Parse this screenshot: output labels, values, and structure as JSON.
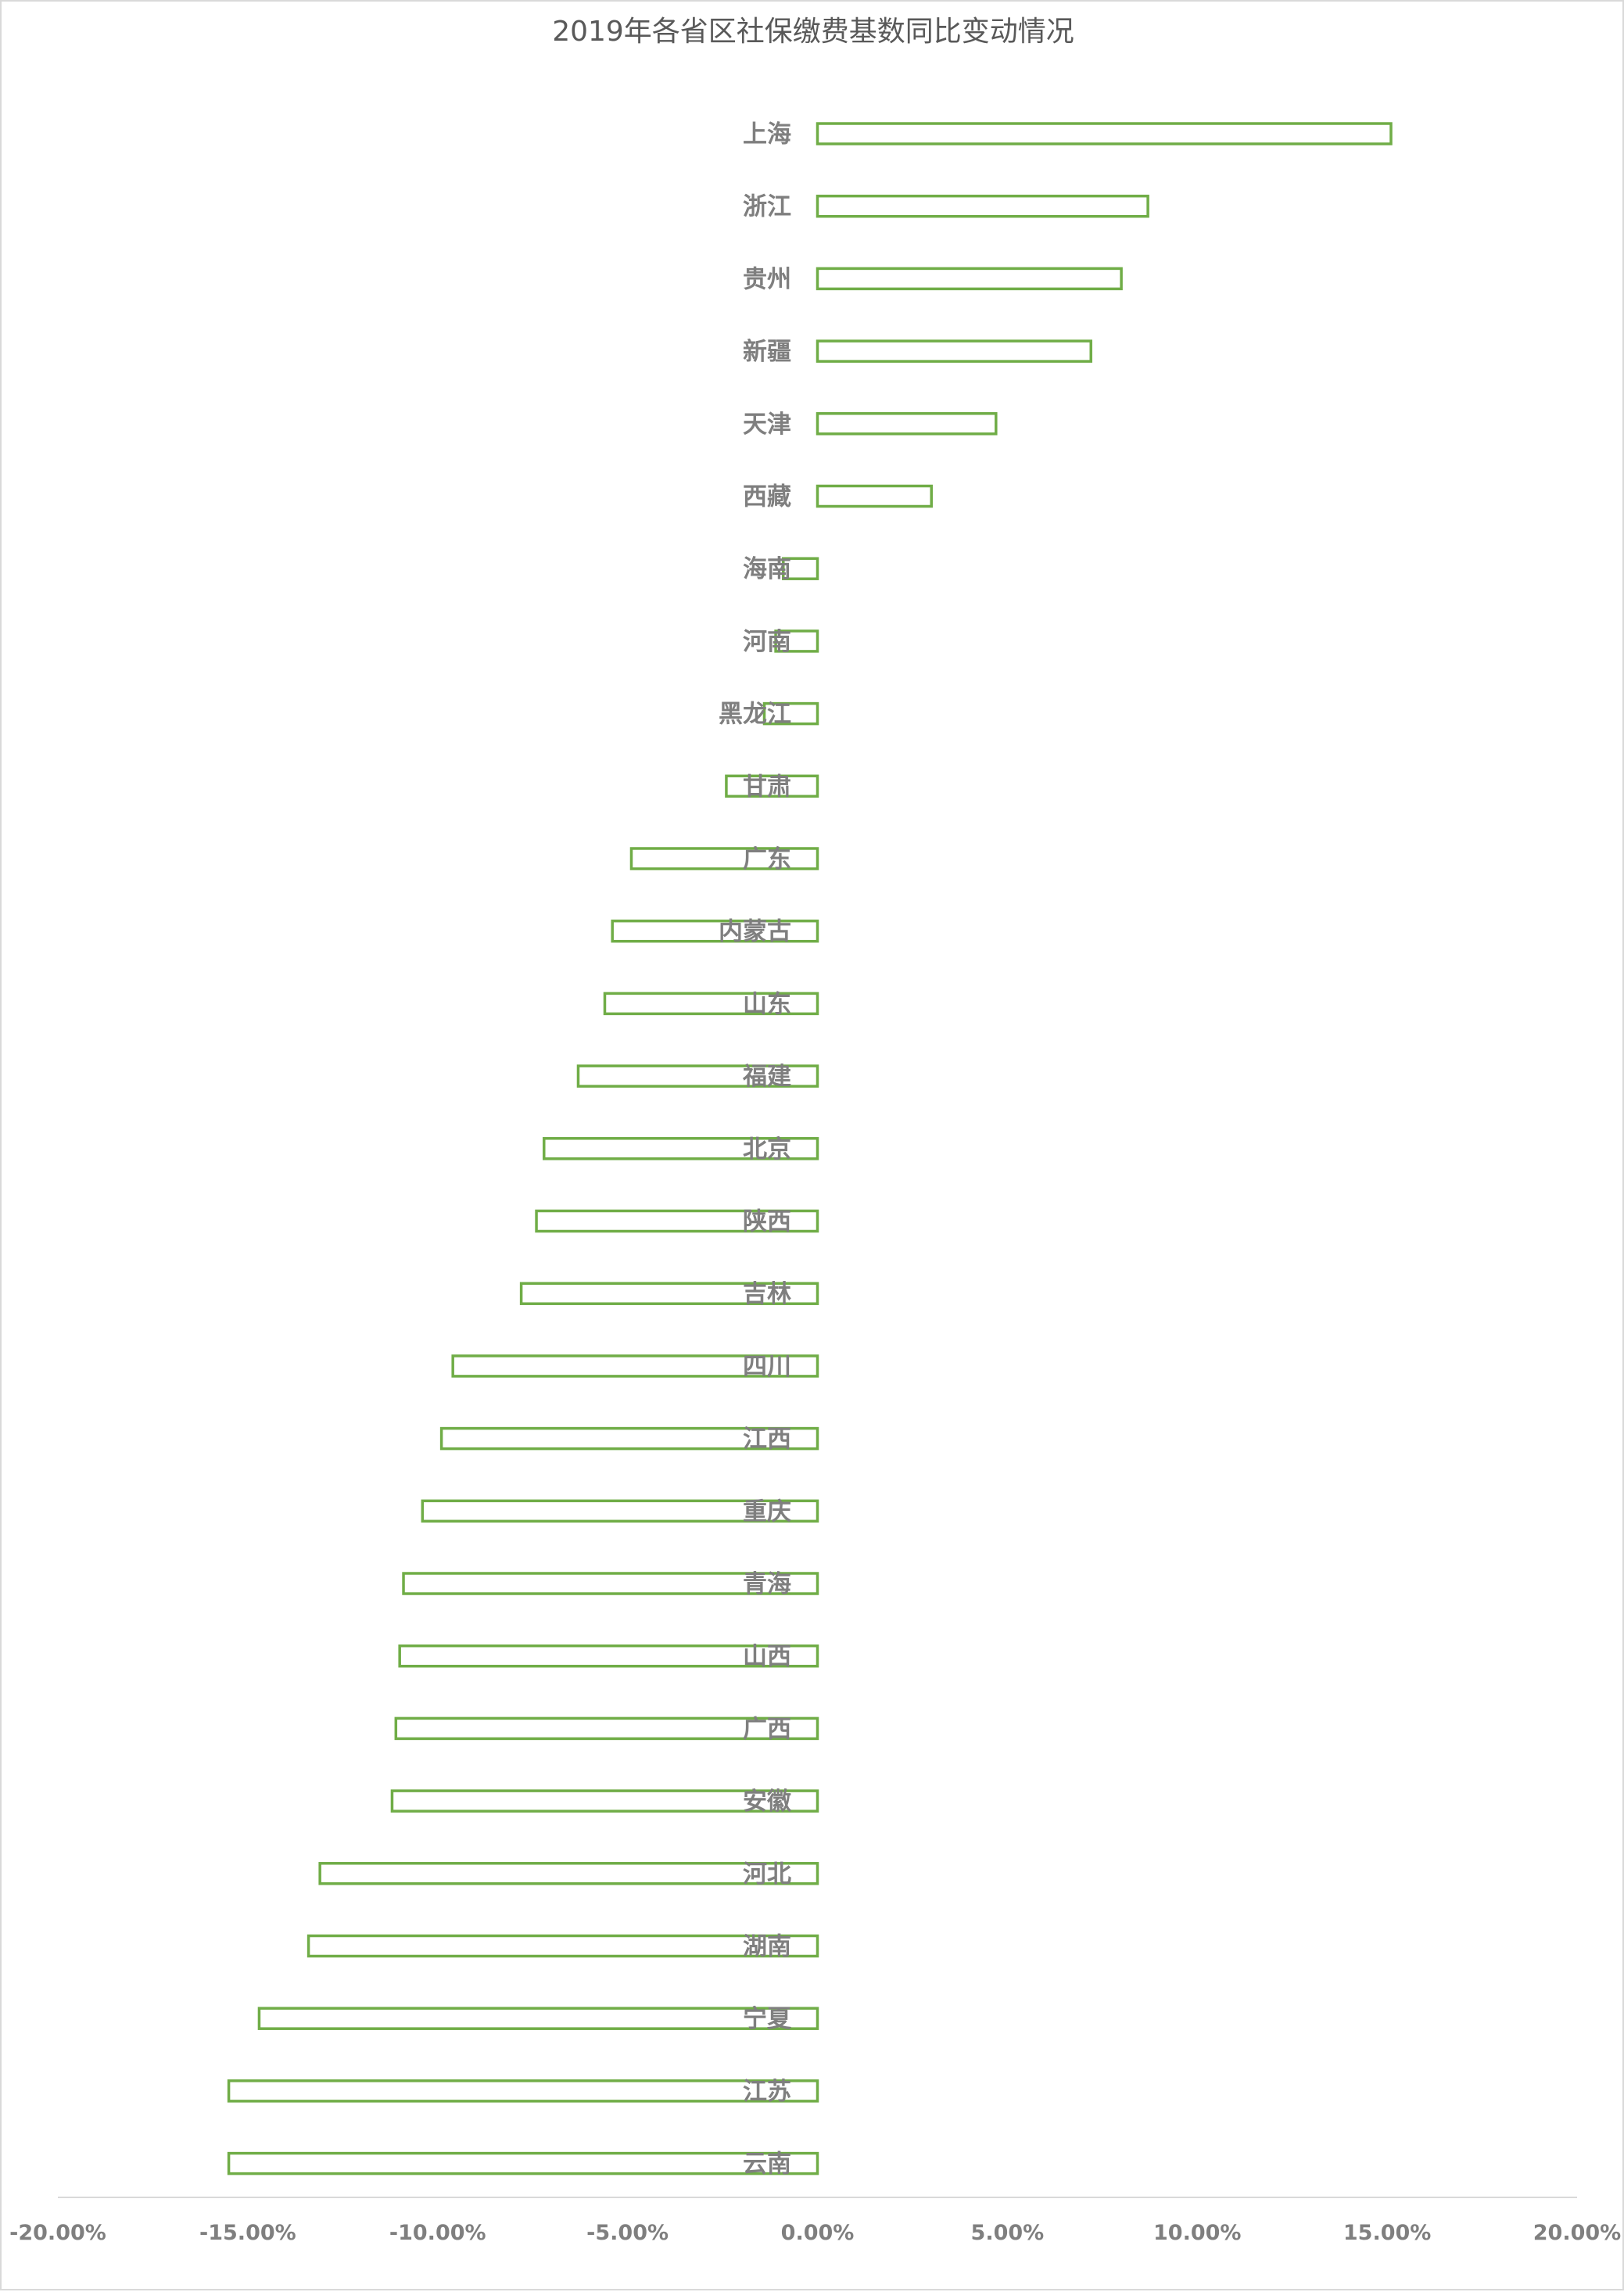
{
  "chart_data": {
    "type": "bar",
    "orientation": "horizontal",
    "title": "2019年各省区社保缴费基数同比变动情况",
    "xlabel": "",
    "ylabel": "",
    "xlim": [
      -0.2,
      0.2
    ],
    "x_ticks": [
      -0.2,
      -0.15,
      -0.1,
      -0.05,
      0.0,
      0.05,
      0.1,
      0.15,
      0.2
    ],
    "x_tick_labels": [
      "-20.00%",
      "-15.00%",
      "-10.00%",
      "-5.00%",
      "0.00%",
      "5.00%",
      "10.00%",
      "15.00%",
      "20.00%"
    ],
    "grid": false,
    "legend": "none",
    "bar_style": "outline",
    "bar_color": "#70ad47",
    "categories": [
      "上海",
      "浙江",
      "贵州",
      "新疆",
      "天津",
      "西藏",
      "海南",
      "河南",
      "黑龙江",
      "甘肃",
      "广东",
      "内蒙古",
      "山东",
      "福建",
      "北京",
      "陕西",
      "吉林",
      "四川",
      "江西",
      "重庆",
      "青海",
      "山西",
      "广西",
      "安徽",
      "河北",
      "湖南",
      "宁夏",
      "江苏",
      "云南"
    ],
    "values": [
      0.151,
      0.087,
      0.08,
      0.072,
      0.047,
      0.03,
      -0.009,
      -0.011,
      -0.014,
      -0.024,
      -0.049,
      -0.054,
      -0.056,
      -0.063,
      -0.072,
      -0.074,
      -0.078,
      -0.096,
      -0.099,
      -0.104,
      -0.109,
      -0.11,
      -0.111,
      -0.112,
      -0.131,
      -0.134,
      -0.147,
      -0.155,
      -0.155
    ]
  }
}
